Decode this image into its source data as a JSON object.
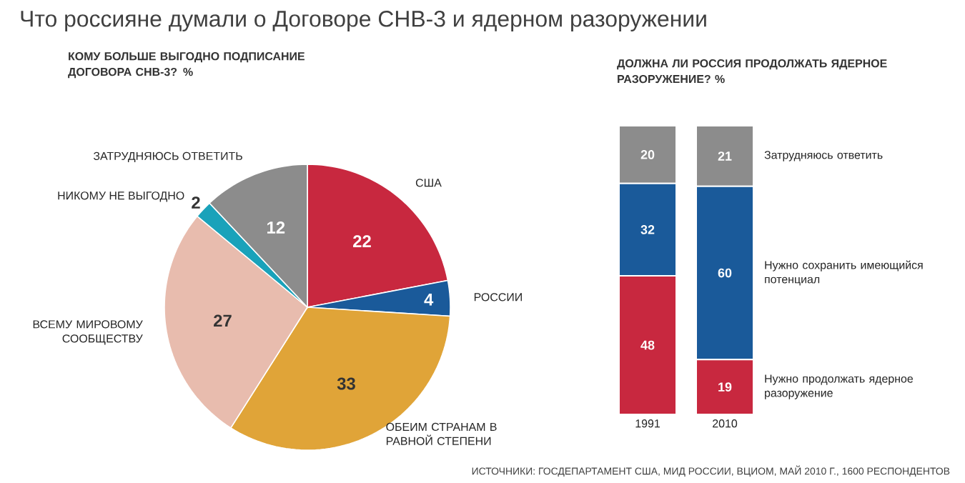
{
  "chart_data": [
    {
      "type": "pie",
      "title": "Что россияне думали о Договоре СНВ-3 и ядерном разоружении",
      "subtitle": "КОМУ БОЛЬШЕ ВЫГОДНО ПОДПИСАНИЕ ДОГОВОРА СНВ-3? %",
      "categories": [
        "США",
        "РОССИИ",
        "ОБЕИМ СТРАНАМ В РАВНОЙ СТЕПЕНИ",
        "ВСЕМУ МИРОВОМУ СООБЩЕСТВУ",
        "НИКОМУ НЕ ВЫГОДНО",
        "ЗАТРУДНЯЮСЬ ОТВЕТИТЬ"
      ],
      "values": [
        22,
        4,
        33,
        27,
        2,
        12
      ],
      "colors": [
        "#c8283f",
        "#1a5a9a",
        "#e0a438",
        "#e8bcae",
        "#1aa2ba",
        "#8c8c8c"
      ],
      "data_labels": true
    },
    {
      "type": "bar",
      "title": "ДОЛЖНА ЛИ РОССИЯ ПРОДОЛЖАТЬ ЯДЕРНОЕ РАЗОРУЖЕНИЕ? %",
      "stacked": true,
      "categories": [
        "1991",
        "2010"
      ],
      "series": [
        {
          "name": "Нужно продолжать ядерное разоружение",
          "color": "#c8283f",
          "values": [
            48,
            19
          ]
        },
        {
          "name": "Нужно сохранить имеющийся потенциал",
          "color": "#1a5a9a",
          "values": [
            32,
            60
          ]
        },
        {
          "name": "Затрудняюсь ответить",
          "color": "#8c8c8c",
          "values": [
            20,
            21
          ]
        }
      ],
      "data_labels": true,
      "annotations": [
        "ИСТОЧНИКИ: ГОСДЕПАРТАМЕНТ США, МИД РОССИИ, ВЦИОМ, МАЙ 2010 Г., 1600 РЕСПОНДЕНТОВ"
      ]
    }
  ]
}
